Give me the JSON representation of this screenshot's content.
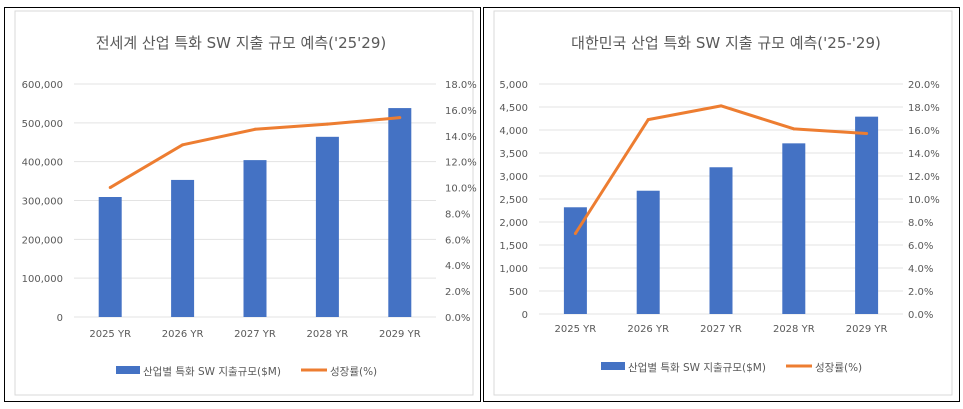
{
  "chart_data": [
    {
      "type": "bar+line",
      "title": "전세계 산업 특화 SW 지출 규모 예측('25'29)",
      "categories": [
        "2025 YR",
        "2026 YR",
        "2027 YR",
        "2028 YR",
        "2029 YR"
      ],
      "series": [
        {
          "name": "산업별 특화 SW 지출규모($M)",
          "type": "bar",
          "axis": "left",
          "color": "#4472c4",
          "values": [
            309000,
            353000,
            404000,
            464000,
            538000
          ]
        },
        {
          "name": "성장률(%)",
          "type": "line",
          "axis": "right",
          "color": "#ed7d31",
          "values": [
            10.0,
            13.3,
            14.5,
            14.9,
            15.4
          ]
        }
      ],
      "ylim": [
        0,
        600000
      ],
      "y_ticks": [
        "0",
        "100,000",
        "200,000",
        "300,000",
        "400,000",
        "500,000",
        "600,000"
      ],
      "y2lim": [
        0,
        18
      ],
      "y2_ticks": [
        "0.0%",
        "2.0%",
        "4.0%",
        "6.0%",
        "8.0%",
        "10.0%",
        "12.0%",
        "14.0%",
        "16.0%",
        "18.0%"
      ],
      "grid": true,
      "legend": "bottom"
    },
    {
      "type": "bar+line",
      "title": "대한민국 산업 특화 SW 지출 규모 예측('25-'29)",
      "categories": [
        "2025 YR",
        "2026 YR",
        "2027 YR",
        "2028 YR",
        "2029 YR"
      ],
      "series": [
        {
          "name": "산업별 특화 SW 지출규모($M)",
          "type": "bar",
          "axis": "left",
          "color": "#4472c4",
          "values": [
            2320,
            2680,
            3190,
            3710,
            4290
          ]
        },
        {
          "name": "성장률(%)",
          "type": "line",
          "axis": "right",
          "color": "#ed7d31",
          "values": [
            7.0,
            16.9,
            18.1,
            16.1,
            15.7
          ]
        }
      ],
      "ylim": [
        0,
        5000
      ],
      "y_ticks": [
        "0",
        "500",
        "1,000",
        "1,500",
        "2,000",
        "2,500",
        "3,000",
        "3,500",
        "4,000",
        "4,500",
        "5,000"
      ],
      "y2lim": [
        0,
        20
      ],
      "y2_ticks": [
        "0.0%",
        "2.0%",
        "4.0%",
        "6.0%",
        "8.0%",
        "10.0%",
        "12.0%",
        "14.0%",
        "16.0%",
        "18.0%",
        "20.0%"
      ],
      "grid": true,
      "legend": "bottom"
    }
  ]
}
